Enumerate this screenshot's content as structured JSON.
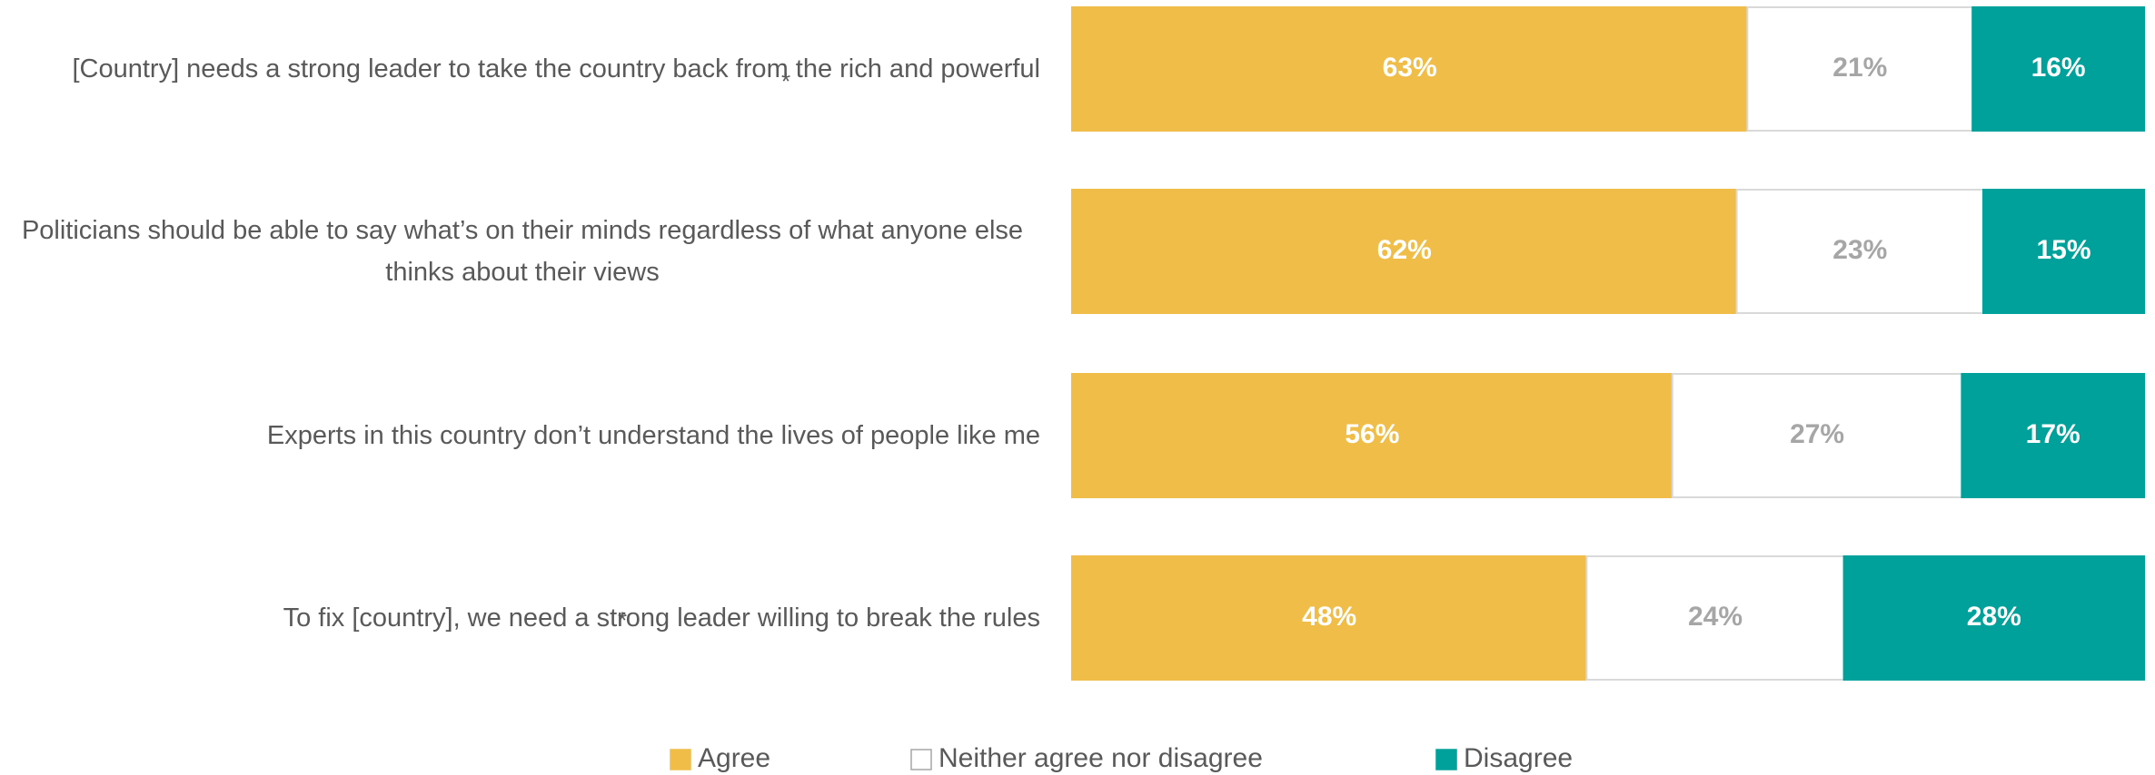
{
  "chart_data": {
    "type": "stacked-barh",
    "categories": [
      "[Country] needs a strong leader to take the country back from the rich and powerful",
      "Politicians should be able to say what’s on their minds regardless of what anyone else thinks about their views",
      "Experts in this country don’t understand the lives of people like me",
      "To fix [country], we need a strong leader willing to break the rules"
    ],
    "series": [
      {
        "name": "Agree",
        "color": "#f0be48",
        "values": [
          63,
          62,
          56,
          48
        ],
        "value_labels": [
          "63%",
          "62%",
          "56%",
          "48%"
        ]
      },
      {
        "name": "Neither agree nor disagree",
        "color": "#ffffff",
        "values": [
          21,
          23,
          27,
          24
        ],
        "value_labels": [
          "21%",
          "23%",
          "27%",
          "24%"
        ]
      },
      {
        "name": "Disagree",
        "color": "#00a19a",
        "values": [
          16,
          15,
          17,
          28
        ],
        "value_labels": [
          "16%",
          "15%",
          "17%",
          "28%"
        ]
      }
    ],
    "xlim": [
      0,
      100
    ],
    "annotations": [
      "*",
      "*"
    ]
  }
}
